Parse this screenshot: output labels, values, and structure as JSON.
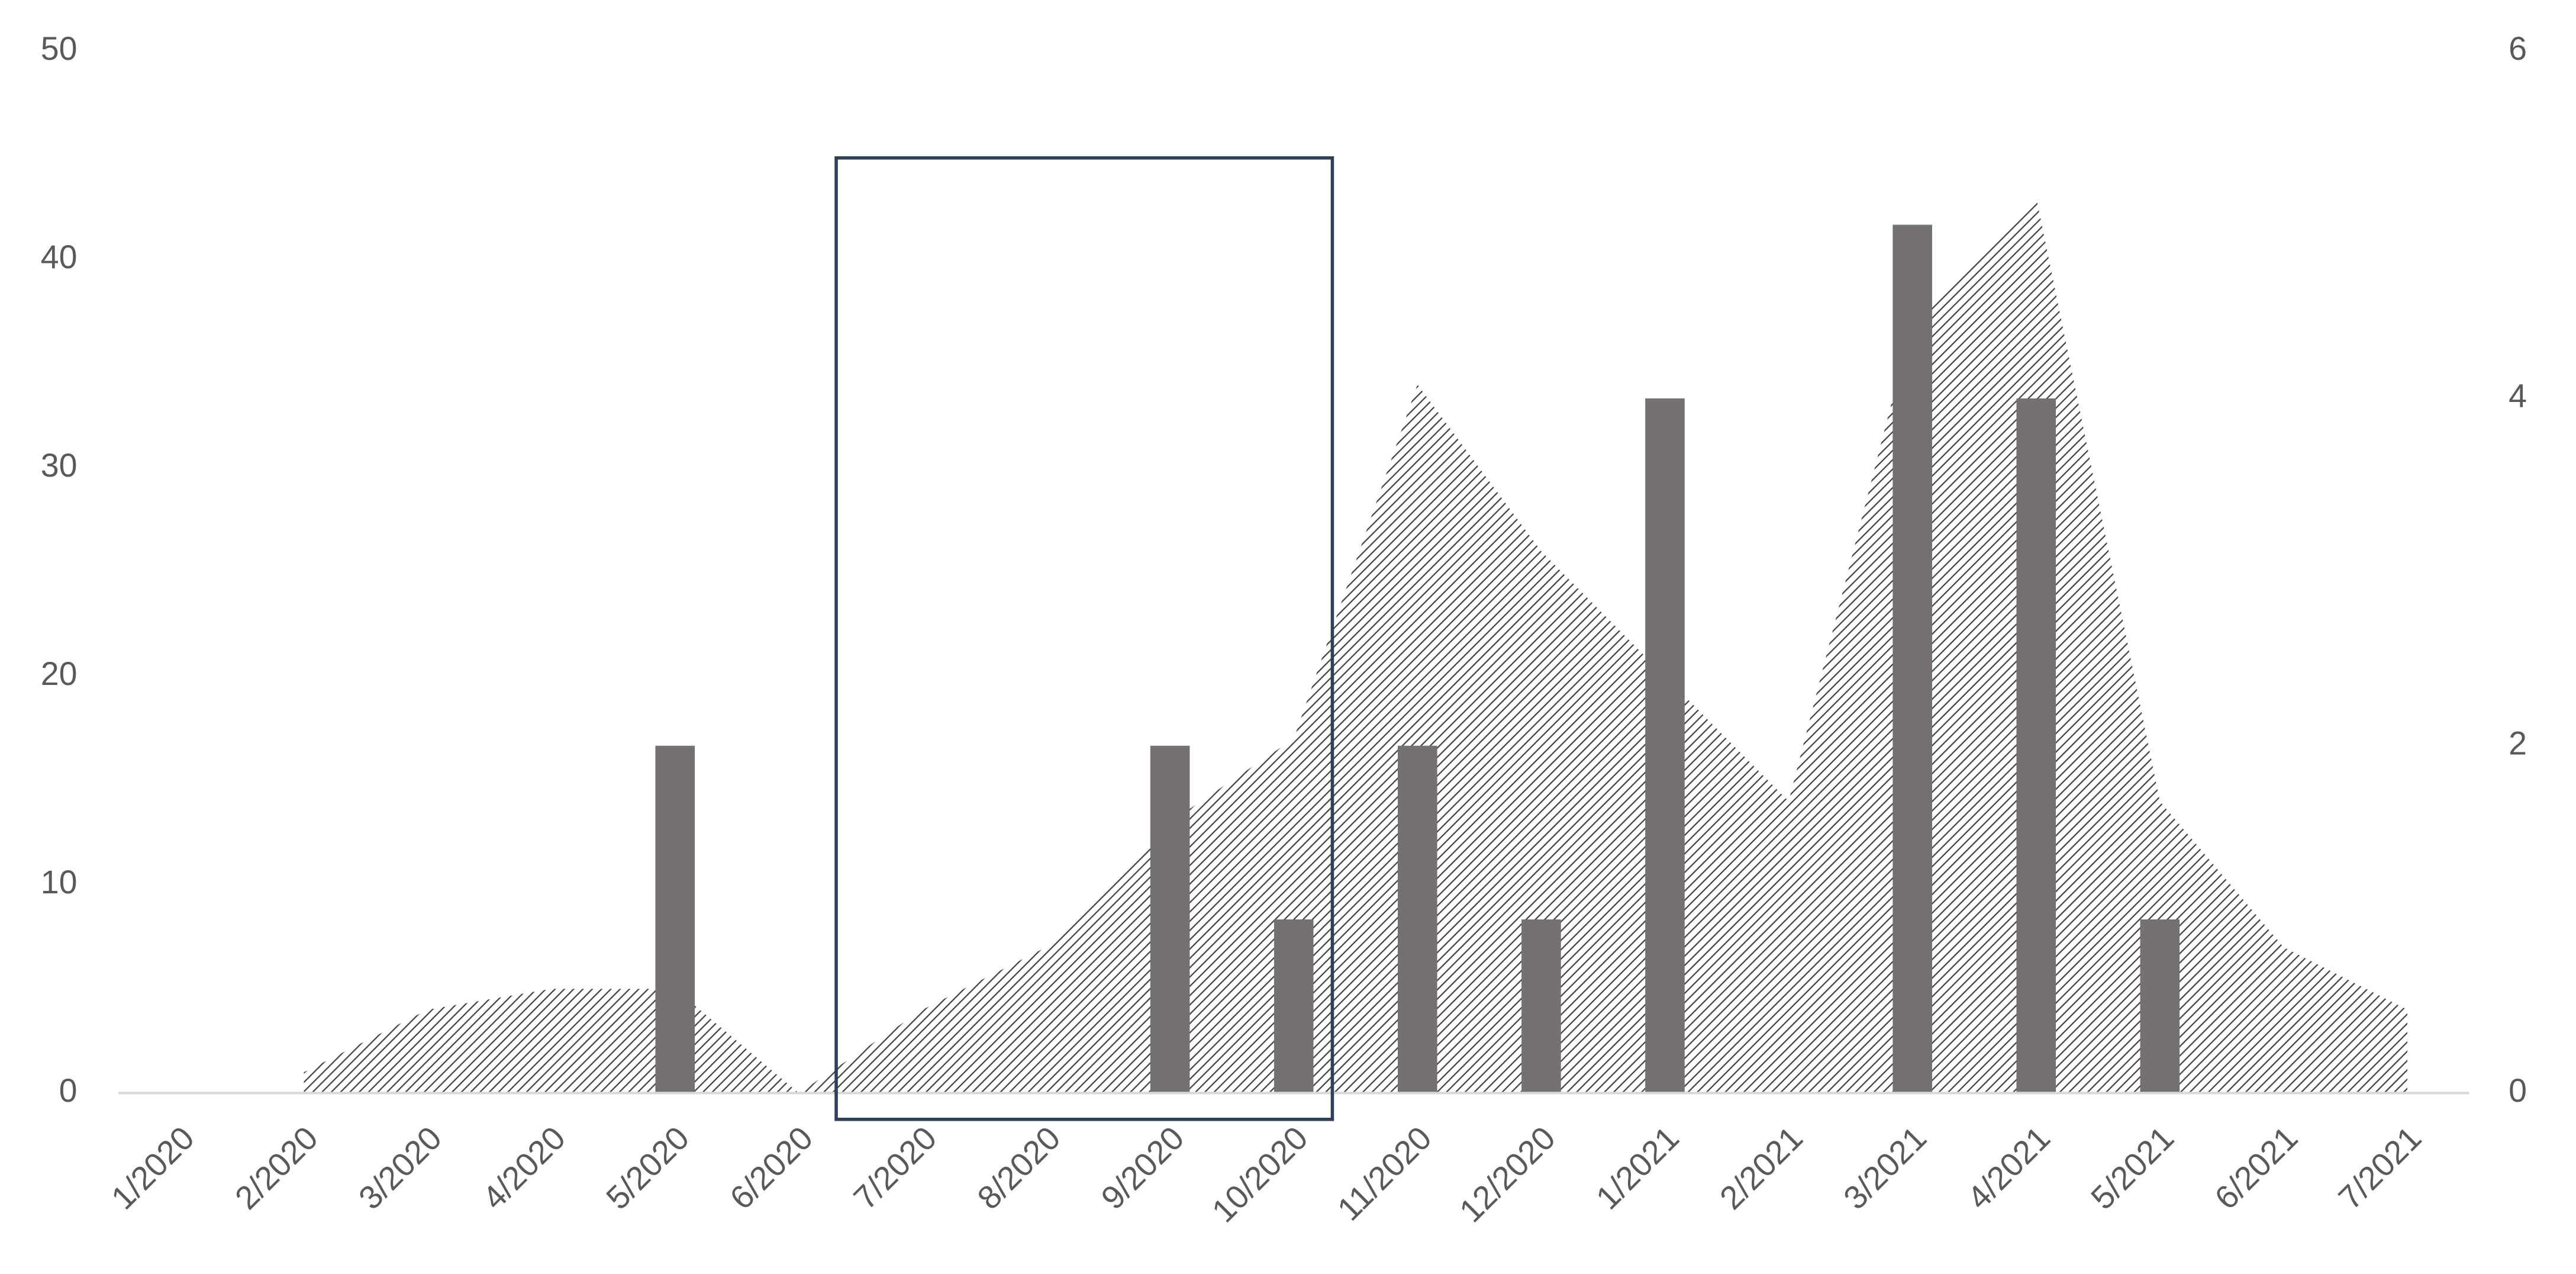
{
  "chart_data": {
    "type": "combo",
    "categories": [
      "1/2020",
      "2/2020",
      "3/2020",
      "4/2020",
      "5/2020",
      "6/2020",
      "7/2020",
      "8/2020",
      "9/2020",
      "10/2020",
      "11/2020",
      "12/2020",
      "1/2021",
      "2/2021",
      "3/2021",
      "4/2021",
      "5/2021",
      "6/2021",
      "7/2021"
    ],
    "series": [
      {
        "type": "area",
        "color": "#404040",
        "values": [
          null,
          1,
          4,
          5,
          5,
          0,
          4,
          7,
          13,
          17,
          34,
          26,
          20,
          14,
          37,
          43,
          14,
          7,
          4
        ]
      },
      {
        "type": "bar",
        "axis": "y2",
        "color": "#767171",
        "values": [
          0,
          0,
          0,
          0,
          2,
          0,
          0,
          0,
          2,
          1,
          2,
          1,
          4,
          0,
          5,
          4,
          1,
          0,
          0
        ]
      }
    ],
    "ylim": [
      0,
      50
    ],
    "yticks": [
      0,
      10,
      20,
      30,
      40,
      50
    ],
    "y2lim": [
      0,
      6
    ],
    "y2ticks": [
      0,
      2,
      4,
      6
    ]
  }
}
